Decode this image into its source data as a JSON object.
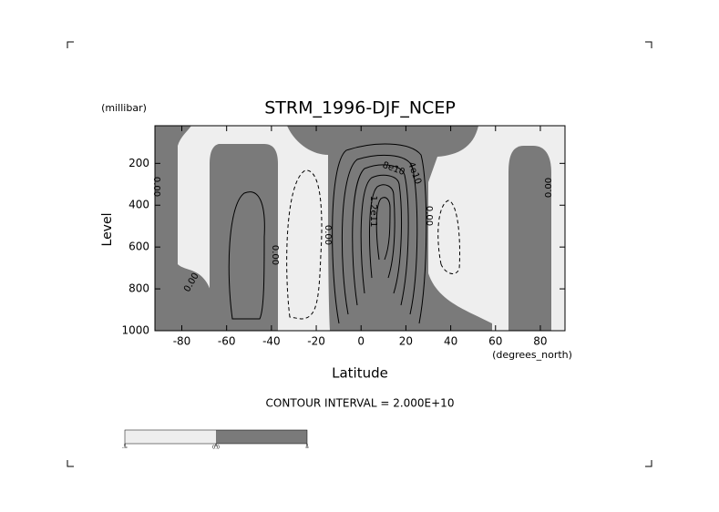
{
  "chart_data": {
    "type": "contour",
    "title": "STRM_1996-DJF_NCEP",
    "x_label": "Latitude",
    "x_unit": "(degrees_north)",
    "y_label": "Level",
    "y_unit": "(millibar)",
    "xlim": [
      -92,
      91
    ],
    "xticks": [
      -80,
      -60,
      -40,
      -20,
      0,
      20,
      40,
      60,
      80
    ],
    "ylim": [
      1000,
      20
    ],
    "yticks": [
      1000,
      800,
      600,
      400,
      200
    ],
    "contour_labels": [
      "0.00",
      "0.00",
      "0.00",
      "0.00",
      "0.00",
      "0.00",
      "8e10",
      "4e10",
      "1.2e11"
    ],
    "contour_interval_text": "CONTOUR INTERVAL = 2.000E+10",
    "colors": [
      "#eeeeee",
      "#7a7a7a"
    ],
    "colorbar_labels": [
      "-∞",
      "0.0",
      "∞"
    ]
  }
}
